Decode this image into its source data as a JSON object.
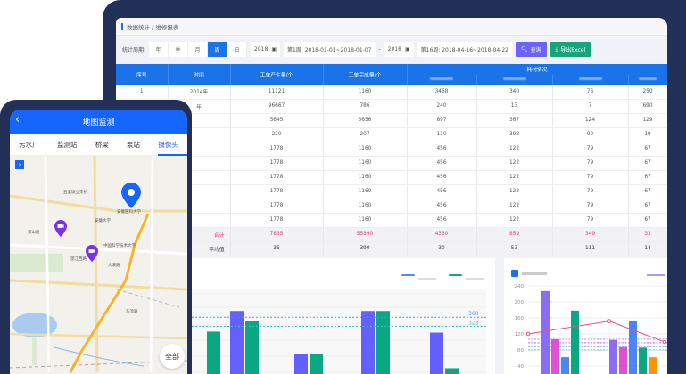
{
  "breadcrumb": "数据统计 / 维修报表",
  "filter": {
    "label": "统计周期:",
    "periods": [
      "年",
      "季",
      "月",
      "周",
      "日"
    ],
    "active_period": "周",
    "start_year": "2018",
    "start_week": "第1周: 2018-01-01~2018-01-07",
    "separator": "-",
    "end_year": "2018",
    "end_week": "第16周: 2018-04-16~2018-04-22",
    "query_label": "查询",
    "export_label": "导出Excel"
  },
  "table": {
    "headers": [
      "序号",
      "时间",
      "工单产生量/个",
      "工单完成量/个"
    ],
    "group_header": "耗材情况",
    "rows": [
      [
        "1",
        "2014年",
        "11121",
        "1160",
        "3468",
        "340",
        "76",
        "250"
      ],
      [
        "",
        "年",
        "96667",
        "786",
        "240",
        "13",
        "7",
        "690"
      ],
      [
        "",
        "",
        "5645",
        "5656",
        "897",
        "367",
        "124",
        "129"
      ],
      [
        "",
        "",
        "220",
        "207",
        "110",
        "398",
        "90",
        "19"
      ],
      [
        "",
        "",
        "1778",
        "1160",
        "456",
        "122",
        "79",
        "67"
      ],
      [
        "",
        "",
        "1778",
        "1160",
        "456",
        "122",
        "79",
        "67"
      ],
      [
        "",
        "",
        "1778",
        "1160",
        "456",
        "122",
        "79",
        "67"
      ],
      [
        "",
        "",
        "1778",
        "1160",
        "456",
        "122",
        "79",
        "67"
      ],
      [
        "",
        "",
        "1778",
        "1160",
        "456",
        "122",
        "79",
        "67"
      ],
      [
        "",
        "",
        "1778",
        "1160",
        "456",
        "122",
        "79",
        "67"
      ]
    ],
    "total": {
      "label": "合计",
      "values": [
        "7835",
        "55390",
        "4330",
        "859",
        "349",
        "33"
      ]
    },
    "average": {
      "label": "平均值",
      "values": [
        "35",
        "390",
        "30",
        "53",
        "111",
        "14"
      ]
    }
  },
  "chart_data": [
    {
      "type": "bar",
      "colors": [
        "#6360ff",
        "#0aa882"
      ],
      "series": [
        {
          "values": [
            null,
            385,
            212,
            385,
            298
          ]
        },
        {
          "values": [
            302,
            344,
            212,
            385,
            155
          ]
        }
      ],
      "mark_lines": [
        {
          "value": 360,
          "label": "360",
          "color": "#4f8ef7"
        },
        {
          "value": 323,
          "label": "323",
          "color": "#3cc0c0"
        }
      ],
      "ylim": [
        60,
        480
      ],
      "grid": true,
      "legend": "top-right"
    },
    {
      "type": "bar",
      "colors": [
        "#8a6cf5",
        "#e04fd6",
        "#4a86f7",
        "#0aa882",
        "#ff9500"
      ],
      "groups": [
        [
          227,
          107,
          62,
          178,
          null
        ],
        [
          105,
          87,
          152,
          86,
          62
        ]
      ],
      "line": {
        "color": "#f0507a",
        "values": [
          120,
          152,
          100
        ]
      },
      "mark_lines": [
        107,
        98,
        88,
        80
      ],
      "yticks": [
        "240",
        "200",
        "160",
        "120",
        "80",
        "40"
      ],
      "ylim": [
        0,
        240
      ],
      "grid": true,
      "legend": "top-right"
    }
  ],
  "phone": {
    "title": "地图监测",
    "tabs": [
      "污水厂",
      "监测站",
      "桥梁",
      "泵站",
      "摄像头"
    ],
    "active_tab": "摄像头",
    "all_label": "全部",
    "map_labels": [
      "五里墩立交桥",
      "黄山路",
      "望江西路",
      "安徽大学",
      "中国科学技术大学",
      "安徽医科大学",
      "大溪路",
      "东流路"
    ]
  },
  "colors": {
    "primary": "#1a73e8",
    "phone_primary": "#1565ff",
    "frame": "#222f57",
    "query": "#6c63ff",
    "export": "#14a57a",
    "total": "#e8336c"
  }
}
